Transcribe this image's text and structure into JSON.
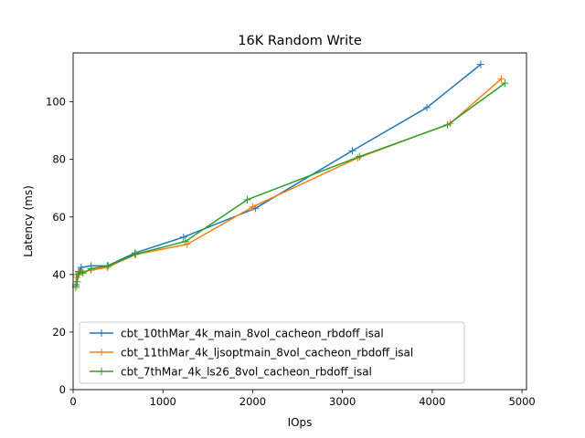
{
  "chart_data": {
    "type": "line",
    "title": "16K  Random Write",
    "xlabel": "IOps",
    "ylabel": "Latency (ms)",
    "xlim": [
      0,
      5050
    ],
    "ylim": [
      0,
      117
    ],
    "xticks": [
      0,
      1000,
      2000,
      3000,
      4000,
      5000
    ],
    "yticks": [
      0,
      20,
      40,
      60,
      80,
      100
    ],
    "legend_position": "lower-left",
    "marker": "+",
    "series": [
      {
        "name": "cbt_10thMar_4k_main_8vol_cacheon_rbdoff_isal",
        "color": "#1f77b4",
        "points": [
          [
            30,
            36.5
          ],
          [
            40,
            40
          ],
          [
            60,
            41
          ],
          [
            90,
            42.5
          ],
          [
            200,
            43
          ],
          [
            380,
            43
          ],
          [
            690,
            47.5
          ],
          [
            1230,
            53
          ],
          [
            2030,
            63
          ],
          [
            3110,
            83
          ],
          [
            3940,
            98
          ],
          [
            4540,
            113
          ]
        ]
      },
      {
        "name": "cbt_11thMar_4k_ljsoptmain_8vol_cacheon_rbdoff_isal",
        "color": "#ff7f0e",
        "points": [
          [
            30,
            36
          ],
          [
            45,
            39
          ],
          [
            65,
            40.5
          ],
          [
            100,
            41
          ],
          [
            200,
            41.5
          ],
          [
            380,
            42.5
          ],
          [
            700,
            47
          ],
          [
            1270,
            50.5
          ],
          [
            2000,
            63.5
          ],
          [
            3170,
            80.5
          ],
          [
            4200,
            92.5
          ],
          [
            4770,
            108
          ]
        ]
      },
      {
        "name": "cbt_7thMar_4k_ls26_8vol_cacheon_rbdoff_isal",
        "color": "#2ca02c",
        "points": [
          [
            30,
            35.5
          ],
          [
            45,
            37.5
          ],
          [
            60,
            40
          ],
          [
            80,
            41
          ],
          [
            110,
            40.5
          ],
          [
            200,
            42
          ],
          [
            390,
            43
          ],
          [
            690,
            47
          ],
          [
            1250,
            51.5
          ],
          [
            1940,
            66
          ],
          [
            3190,
            81
          ],
          [
            4170,
            92
          ],
          [
            4810,
            106.5
          ]
        ]
      }
    ]
  }
}
